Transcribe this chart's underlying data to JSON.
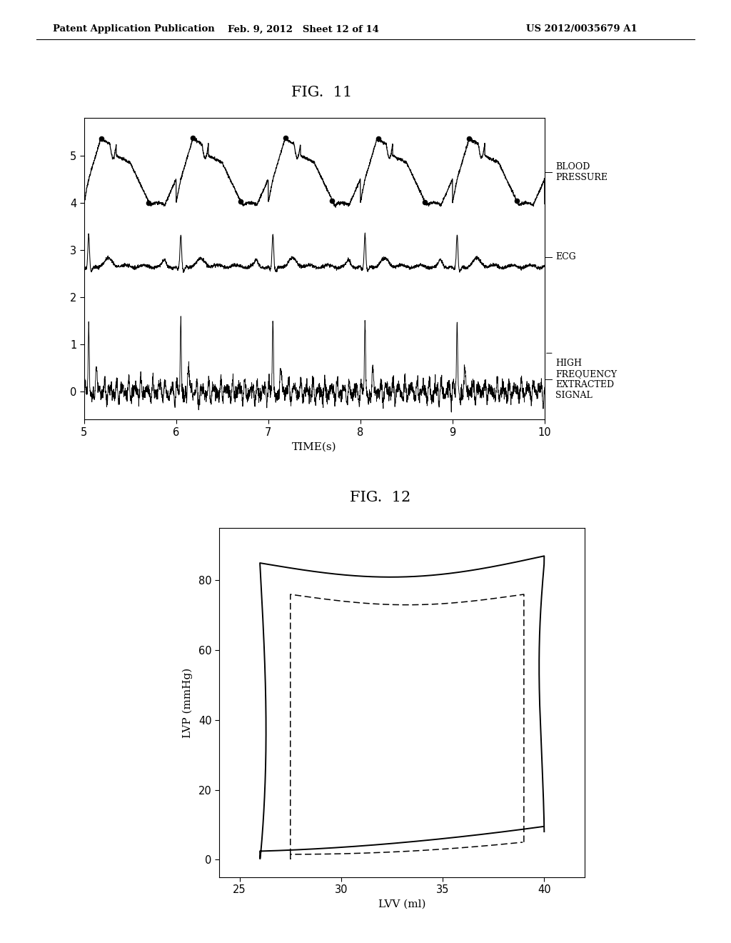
{
  "fig11_title": "FIG.  11",
  "fig12_title": "FIG.  12",
  "header_left": "Patent Application Publication",
  "header_mid": "Feb. 9, 2012   Sheet 12 of 14",
  "header_right": "US 2012/0035679 A1",
  "fig11": {
    "xlim": [
      5,
      10
    ],
    "ylim": [
      -0.6,
      5.8
    ],
    "yticks": [
      0,
      1,
      2,
      3,
      4,
      5
    ],
    "xticks": [
      5,
      6,
      7,
      8,
      9,
      10
    ],
    "xlabel": "TIME(s)",
    "label_bp": "BLOOD\nPRESSURE",
    "label_ecg": "ECG",
    "label_hf": "HIGH\nFREQUENCY\nEXTRACTED\nSIGNAL"
  },
  "fig12": {
    "xlim": [
      24,
      42
    ],
    "ylim": [
      -5,
      95
    ],
    "yticks": [
      0,
      20,
      40,
      60,
      80
    ],
    "xticks": [
      25,
      30,
      35,
      40
    ],
    "xlabel": "LVV (ml)",
    "ylabel": "LVP (mmHg)"
  },
  "bg_color": "#ffffff",
  "line_color": "#000000"
}
